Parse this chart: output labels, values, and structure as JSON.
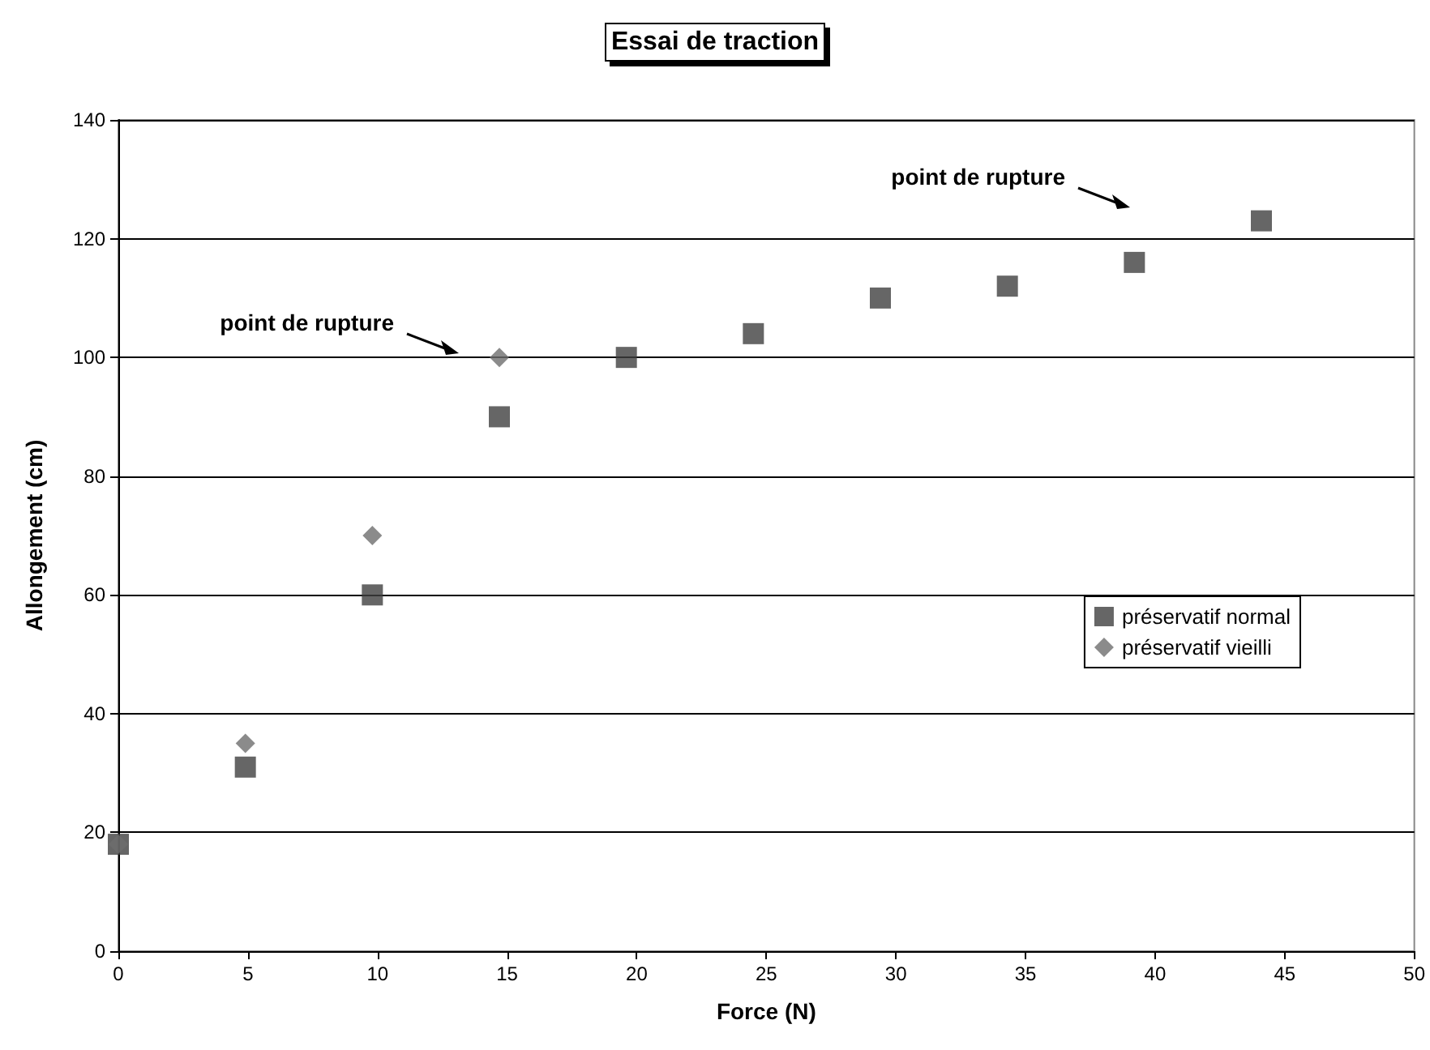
{
  "chart_data": {
    "type": "scatter",
    "title": "Essai de traction",
    "xlabel": "Force (N)",
    "ylabel": "Allongement (cm)",
    "series": [
      {
        "name": "préservatif normal",
        "color": "#404040",
        "marker": "square",
        "x": [
          0,
          4.9,
          9.8,
          14.7,
          19.6,
          24.5,
          29.4,
          34.3,
          39.2,
          44.1
        ],
        "values": [
          18,
          31,
          60,
          90,
          100,
          104,
          110,
          112,
          116,
          123
        ]
      },
      {
        "name": "préservatif vieilli",
        "color": "#6e6e6e",
        "marker": "diamond",
        "x": [
          0,
          4.9,
          9.8,
          14.7
        ],
        "values": [
          18,
          35,
          70,
          100
        ]
      }
    ],
    "annotations": [
      "point de rupture",
      "point de rupture"
    ],
    "xlim": [
      0,
      50
    ],
    "xticks": [
      0,
      5,
      10,
      15,
      20,
      25,
      30,
      35,
      40,
      45,
      50
    ],
    "ylim": [
      0,
      140
    ],
    "yticks": [
      0,
      20,
      40,
      60,
      80,
      100,
      120,
      140
    ],
    "grid": "y",
    "legend": "right"
  }
}
